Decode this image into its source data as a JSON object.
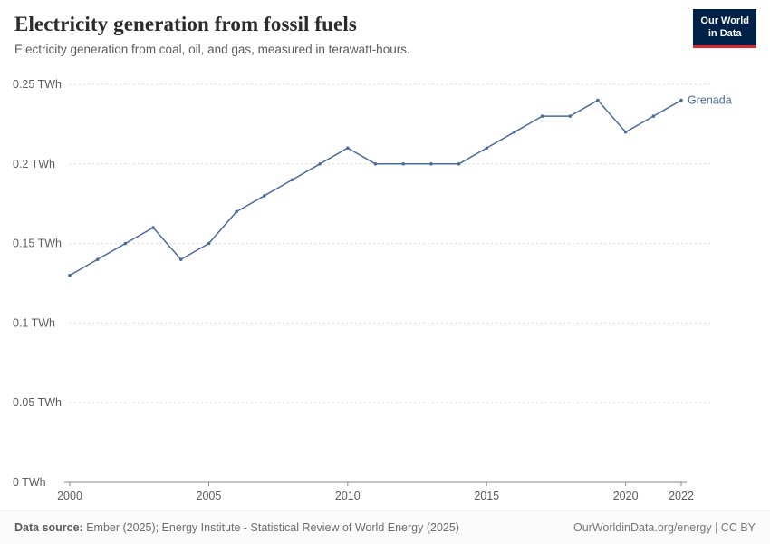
{
  "logo": {
    "line1": "Our World",
    "line2": "in Data"
  },
  "colors": {
    "logo_navy": "#002147",
    "logo_red": "#d42b2f",
    "line": "#4c6a9c",
    "grid": "#dadada",
    "axis": "#8a8a8a",
    "tick_text": "#5b5b5b"
  },
  "chart_data": {
    "type": "line",
    "title": "Electricity generation from fossil fuels",
    "subtitle": "Electricity generation from coal, oil, and gas, measured in terawatt-hours.",
    "xlabel": "",
    "ylabel": "",
    "xlim": [
      2000,
      2022
    ],
    "ylim": [
      0,
      0.25
    ],
    "grid": true,
    "legend_position": "end-of-line-label",
    "x_ticks": [
      2000,
      2005,
      2010,
      2015,
      2020,
      2022
    ],
    "y_ticks": [
      0,
      0.05,
      0.1,
      0.15,
      0.2,
      0.25
    ],
    "y_tick_labels": [
      "0 TWh",
      "0.05 TWh",
      "0.1 TWh",
      "0.15 TWh",
      "0.2 TWh",
      "0.25 TWh"
    ],
    "series": [
      {
        "name": "Grenada",
        "color": "#4c6a9c",
        "x": [
          2000,
          2001,
          2002,
          2003,
          2004,
          2005,
          2006,
          2007,
          2008,
          2009,
          2010,
          2011,
          2012,
          2013,
          2014,
          2015,
          2016,
          2017,
          2018,
          2019,
          2020,
          2021,
          2022
        ],
        "values": [
          0.13,
          0.14,
          0.15,
          0.16,
          0.14,
          0.15,
          0.17,
          0.18,
          0.19,
          0.2,
          0.21,
          0.2,
          0.2,
          0.2,
          0.2,
          0.21,
          0.22,
          0.23,
          0.23,
          0.24,
          0.22,
          0.23,
          0.24
        ]
      }
    ]
  },
  "footer": {
    "source_label": "Data source:",
    "source_text": " Ember (2025); Energy Institute - Statistical Review of World Energy (2025)",
    "right_text": "OurWorldinData.org/energy | CC BY"
  }
}
